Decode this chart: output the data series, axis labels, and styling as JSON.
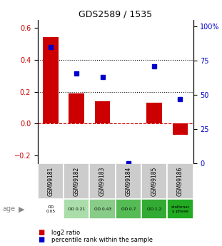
{
  "title": "GDS2589 / 1535",
  "samples": [
    "GSM99181",
    "GSM99182",
    "GSM99183",
    "GSM99184",
    "GSM99185",
    "GSM99186"
  ],
  "log2_ratio": [
    0.54,
    0.19,
    0.14,
    0.0,
    0.13,
    -0.07
  ],
  "percentile_rank_pct": [
    85,
    66,
    63,
    0,
    71,
    47
  ],
  "ylim_left": [
    -0.25,
    0.65
  ],
  "ylim_right": [
    0,
    105
  ],
  "yticks_left": [
    -0.2,
    0.0,
    0.2,
    0.4,
    0.6
  ],
  "yticks_right": [
    0,
    25,
    50,
    75,
    100
  ],
  "ytick_labels_right": [
    "0",
    "25",
    "50",
    "75",
    "100%"
  ],
  "hlines_black": [
    0.2,
    0.4
  ],
  "hline_red": 0.0,
  "bar_color": "#cc0000",
  "dot_color": "#0000cc",
  "age_labels": [
    "OD\n0.05",
    "OD 0.21",
    "OD 0.43",
    "OD 0.7",
    "OD 1.2",
    "stationar\ny phase"
  ],
  "age_colors": [
    "#ffffff",
    "#aaddaa",
    "#88cc88",
    "#55bb55",
    "#33aa33",
    "#22aa22"
  ],
  "sample_bg_color": "#cccccc",
  "legend_bar_label": "log2 ratio",
  "legend_dot_label": "percentile rank within the sample",
  "age_label": "age"
}
